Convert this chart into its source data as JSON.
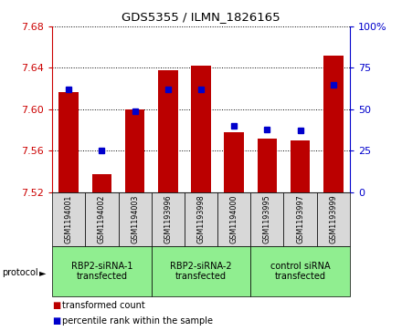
{
  "title": "GDS5355 / ILMN_1826165",
  "samples": [
    "GSM1194001",
    "GSM1194002",
    "GSM1194003",
    "GSM1193996",
    "GSM1193998",
    "GSM1194000",
    "GSM1193995",
    "GSM1193997",
    "GSM1193999"
  ],
  "red_values": [
    7.617,
    7.537,
    7.6,
    7.638,
    7.642,
    7.578,
    7.572,
    7.57,
    7.652
  ],
  "blue_percentiles": [
    62,
    25,
    49,
    62,
    62,
    40,
    38,
    37,
    65
  ],
  "y_min": 7.52,
  "y_max": 7.68,
  "y_ticks": [
    7.52,
    7.56,
    7.6,
    7.64,
    7.68
  ],
  "y2_ticks": [
    0,
    25,
    50,
    75,
    100
  ],
  "y2_labels": [
    "0",
    "25",
    "50",
    "75",
    "100%"
  ],
  "bar_color": "#bb0000",
  "dot_color": "#0000cc",
  "group_defs": [
    {
      "start": 0,
      "end": 3,
      "label": "RBP2-siRNA-1\ntransfected"
    },
    {
      "start": 3,
      "end": 6,
      "label": "RBP2-siRNA-2\ntransfected"
    },
    {
      "start": 6,
      "end": 9,
      "label": "control siRNA\ntransfected"
    }
  ],
  "protocol_label": "protocol",
  "legend_items": [
    {
      "color": "#bb0000",
      "label": "transformed count"
    },
    {
      "color": "#0000cc",
      "label": "percentile rank within the sample"
    }
  ],
  "left_tick_color": "#cc0000",
  "right_tick_color": "#0000cc",
  "group_color": "#90ee90",
  "sample_box_color": "#d8d8d8"
}
